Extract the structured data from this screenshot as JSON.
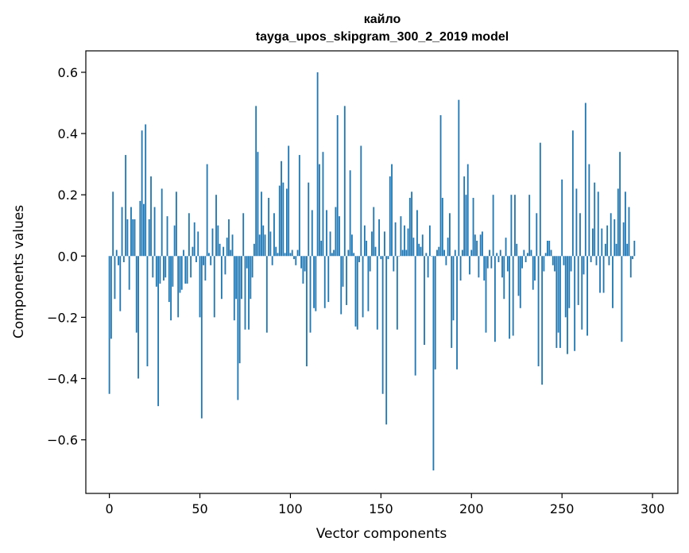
{
  "chart_data": {
    "type": "bar",
    "title": "кайло",
    "subtitle": "tayga_upos_skipgram_300_2_2019 model",
    "xlabel": "Vector components",
    "ylabel": "Components values",
    "xlim": [
      -13,
      314
    ],
    "ylim": [
      -0.775,
      0.67
    ],
    "xticks": [
      0,
      50,
      100,
      150,
      200,
      250,
      300
    ],
    "xtick_labels": [
      "0",
      "50",
      "100",
      "150",
      "200",
      "250",
      "300"
    ],
    "yticks": [
      -0.6,
      -0.4,
      -0.2,
      0.0,
      0.2,
      0.4,
      0.6
    ],
    "ytick_labels": [
      "−0.6",
      "−0.4",
      "−0.2",
      "0.0",
      "0.2",
      "0.4",
      "0.6"
    ],
    "color": "#1f77b4",
    "grid": false,
    "values": [
      -0.45,
      -0.27,
      0.21,
      -0.14,
      0.02,
      -0.03,
      -0.18,
      0.16,
      -0.02,
      0.33,
      0.12,
      -0.11,
      0.16,
      0.12,
      0.12,
      -0.25,
      -0.4,
      0.18,
      0.41,
      0.17,
      0.43,
      -0.36,
      0.12,
      0.26,
      -0.07,
      0.16,
      -0.1,
      -0.49,
      -0.09,
      0.22,
      -0.08,
      -0.07,
      0.13,
      -0.15,
      -0.21,
      -0.1,
      0.1,
      0.21,
      -0.2,
      -0.12,
      -0.11,
      0.02,
      -0.09,
      -0.09,
      0.14,
      -0.07,
      0.03,
      0.11,
      -0.02,
      0.08,
      -0.2,
      -0.53,
      -0.03,
      -0.08,
      0.3,
      0.01,
      -0.03,
      0.09,
      -0.2,
      0.2,
      0.1,
      0.04,
      -0.14,
      0.03,
      -0.06,
      0.06,
      0.12,
      0.02,
      0.07,
      -0.21,
      -0.14,
      -0.47,
      -0.35,
      -0.14,
      0.14,
      -0.24,
      -0.04,
      -0.24,
      -0.14,
      -0.07,
      0.04,
      0.49,
      0.34,
      0.07,
      0.21,
      0.1,
      0.07,
      -0.25,
      0.19,
      0.08,
      -0.03,
      0.14,
      0.03,
      0.01,
      0.23,
      0.31,
      0.24,
      0.01,
      0.22,
      0.36,
      0.01,
      0.02,
      -0.01,
      -0.03,
      0.02,
      0.33,
      -0.04,
      -0.09,
      -0.05,
      -0.36,
      0.24,
      -0.25,
      0.15,
      -0.17,
      -0.18,
      0.6,
      0.3,
      0.05,
      0.34,
      -0.17,
      0.15,
      -0.15,
      0.08,
      0.01,
      0.02,
      0.16,
      0.46,
      0.13,
      -0.19,
      -0.1,
      0.49,
      -0.16,
      0.02,
      0.28,
      0.07,
      0.01,
      -0.23,
      -0.24,
      -0.02,
      0.36,
      -0.2,
      0.1,
      0.05,
      -0.18,
      -0.05,
      0.08,
      0.16,
      0.03,
      -0.24,
      0.12,
      -0.01,
      -0.45,
      0.08,
      -0.55,
      -0.01,
      0.26,
      0.3,
      -0.05,
      0.11,
      -0.24,
      0.0,
      0.13,
      0.02,
      0.1,
      0.02,
      0.09,
      0.19,
      0.21,
      0.06,
      -0.39,
      0.15,
      0.04,
      0.03,
      0.07,
      -0.29,
      0.01,
      -0.07,
      0.1,
      0.0,
      -0.7,
      -0.37,
      0.02,
      0.03,
      0.46,
      0.19,
      0.02,
      -0.03,
      0.06,
      0.14,
      -0.3,
      -0.21,
      0.02,
      -0.37,
      0.51,
      -0.08,
      0.02,
      0.26,
      0.2,
      0.3,
      -0.06,
      0.02,
      0.19,
      0.07,
      0.05,
      -0.07,
      0.07,
      0.08,
      -0.08,
      -0.25,
      -0.04,
      0.02,
      -0.04,
      0.2,
      -0.28,
      0.01,
      -0.02,
      0.02,
      -0.07,
      -0.14,
      0.06,
      -0.05,
      -0.27,
      0.2,
      -0.26,
      0.2,
      0.04,
      -0.13,
      -0.17,
      -0.04,
      0.02,
      -0.02,
      0.01,
      0.2,
      0.02,
      -0.11,
      -0.08,
      0.14,
      -0.36,
      0.37,
      -0.42,
      -0.05,
      0.01,
      0.05,
      0.05,
      0.02,
      -0.03,
      -0.05,
      -0.3,
      -0.25,
      -0.3,
      0.25,
      -0.03,
      -0.2,
      -0.32,
      -0.17,
      -0.05,
      0.41,
      -0.31,
      0.22,
      -0.16,
      0.14,
      -0.24,
      -0.06,
      0.5,
      -0.26,
      0.3,
      -0.02,
      0.09,
      0.24,
      -0.03,
      0.21,
      -0.12,
      0.09,
      -0.12,
      0.04,
      0.1,
      -0.03,
      0.14,
      -0.17,
      0.12,
      0.04,
      0.22,
      0.34,
      -0.28,
      0.11,
      0.21,
      0.04,
      0.16,
      -0.07,
      -0.01,
      0.05
    ]
  }
}
